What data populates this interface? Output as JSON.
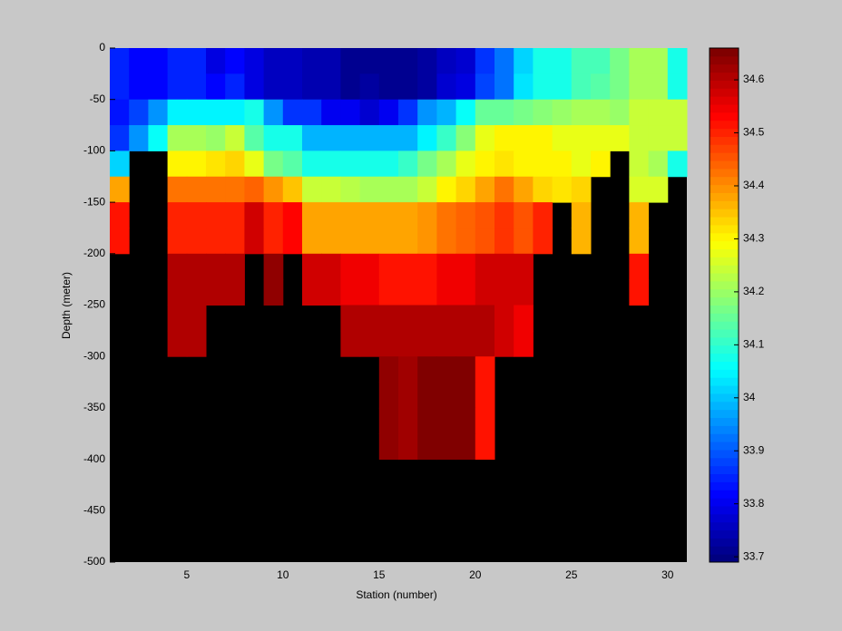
{
  "chart_data": {
    "type": "heatmap",
    "xlabel": "Station (number)",
    "ylabel": "Depth (meter)",
    "xlim": [
      1,
      31
    ],
    "ylim": [
      -500,
      0
    ],
    "xticks": [
      5,
      10,
      15,
      20,
      25,
      30
    ],
    "yticks": [
      0,
      -50,
      -100,
      -150,
      -200,
      -250,
      -300,
      -350,
      -400,
      -450,
      -500
    ],
    "colormap": "jet",
    "nan_color": "#000000",
    "clim": [
      33.69,
      34.66
    ],
    "colorbar_ticks": [
      33.7,
      33.8,
      33.9,
      34,
      34.1,
      34.2,
      34.3,
      34.4,
      34.5,
      34.6
    ],
    "x": [
      1,
      2,
      3,
      4,
      5,
      6,
      7,
      8,
      9,
      10,
      11,
      12,
      13,
      14,
      15,
      16,
      17,
      18,
      19,
      20,
      21,
      22,
      23,
      24,
      25,
      26,
      27,
      28,
      29,
      30
    ],
    "y": [
      0,
      -25,
      -50,
      -75,
      -100,
      -125,
      -150,
      -175,
      -200,
      -225,
      -250,
      -275,
      -300,
      -325,
      -350,
      -375,
      -400,
      -425,
      -450,
      -475
    ],
    "z": [
      [
        33.85,
        33.82,
        33.82,
        33.85,
        33.85,
        33.79,
        33.82,
        33.79,
        33.76,
        33.76,
        33.74,
        33.74,
        33.71,
        33.72,
        33.71,
        33.71,
        33.73,
        33.76,
        33.78,
        33.86,
        33.93,
        34.02,
        34.08,
        34.08,
        34.12,
        34.12,
        34.16,
        34.22,
        34.22,
        34.08
      ],
      [
        33.85,
        33.82,
        33.82,
        33.85,
        33.85,
        33.82,
        33.85,
        33.79,
        33.76,
        33.76,
        33.74,
        33.74,
        33.72,
        33.73,
        33.72,
        33.72,
        33.73,
        33.77,
        33.79,
        33.88,
        33.93,
        34.03,
        34.08,
        34.08,
        34.12,
        34.13,
        34.16,
        34.22,
        34.22,
        34.08
      ],
      [
        33.84,
        33.88,
        33.95,
        34.04,
        34.04,
        34.04,
        34.04,
        34.08,
        33.95,
        33.86,
        33.86,
        33.8,
        33.8,
        33.78,
        33.8,
        33.86,
        33.95,
        33.98,
        34.06,
        34.15,
        34.15,
        34.17,
        34.19,
        34.2,
        34.22,
        34.22,
        34.2,
        34.24,
        34.24,
        34.24
      ],
      [
        33.86,
        33.95,
        34.06,
        34.22,
        34.22,
        34.2,
        34.25,
        34.14,
        34.07,
        34.07,
        33.98,
        33.98,
        33.98,
        33.98,
        33.98,
        33.98,
        34.05,
        34.1,
        34.18,
        34.28,
        34.3,
        34.3,
        34.3,
        34.28,
        34.28,
        34.27,
        34.27,
        34.25,
        34.24,
        34.24
      ],
      [
        34.02,
        null,
        null,
        34.3,
        34.3,
        34.32,
        34.34,
        34.27,
        34.17,
        34.14,
        34.08,
        34.08,
        34.08,
        34.08,
        34.08,
        34.1,
        34.17,
        34.22,
        34.27,
        34.3,
        34.32,
        34.3,
        34.3,
        34.3,
        34.28,
        34.3,
        null,
        34.24,
        34.22,
        34.08
      ],
      [
        34.38,
        null,
        null,
        34.42,
        34.42,
        34.42,
        34.42,
        34.44,
        34.4,
        34.35,
        34.25,
        34.24,
        34.23,
        34.22,
        34.22,
        34.21,
        34.24,
        34.3,
        34.34,
        34.38,
        34.42,
        34.38,
        34.34,
        34.32,
        34.33,
        null,
        null,
        34.26,
        34.26,
        null
      ],
      [
        34.52,
        null,
        null,
        34.5,
        34.5,
        34.5,
        34.5,
        34.58,
        34.5,
        34.53,
        34.38,
        34.38,
        34.38,
        34.38,
        34.38,
        34.38,
        34.4,
        34.42,
        34.44,
        34.46,
        34.48,
        34.46,
        34.5,
        null,
        34.36,
        null,
        null,
        34.36,
        null,
        null
      ],
      [
        34.52,
        null,
        null,
        34.5,
        34.5,
        34.5,
        34.5,
        34.58,
        34.5,
        34.53,
        34.38,
        34.38,
        34.38,
        34.38,
        34.38,
        34.38,
        34.4,
        34.42,
        34.44,
        34.46,
        34.48,
        34.46,
        34.5,
        null,
        34.36,
        null,
        null,
        34.36,
        null,
        null
      ],
      [
        null,
        null,
        null,
        34.61,
        34.61,
        34.61,
        34.61,
        null,
        34.64,
        null,
        34.58,
        34.58,
        34.54,
        34.54,
        34.52,
        34.52,
        34.52,
        34.54,
        34.54,
        34.57,
        34.58,
        34.58,
        null,
        null,
        null,
        null,
        null,
        34.52,
        null,
        null
      ],
      [
        null,
        null,
        null,
        34.61,
        34.61,
        34.61,
        34.61,
        null,
        34.64,
        null,
        34.58,
        34.58,
        34.54,
        34.54,
        34.52,
        34.52,
        34.52,
        34.54,
        34.54,
        34.57,
        34.58,
        34.58,
        null,
        null,
        null,
        null,
        null,
        34.52,
        null,
        null
      ],
      [
        null,
        null,
        null,
        34.61,
        34.61,
        null,
        null,
        null,
        null,
        null,
        null,
        null,
        34.6,
        34.6,
        34.6,
        34.6,
        34.6,
        34.61,
        34.61,
        34.61,
        34.58,
        34.55,
        null,
        null,
        null,
        null,
        null,
        null,
        null,
        null
      ],
      [
        null,
        null,
        null,
        34.61,
        34.61,
        null,
        null,
        null,
        null,
        null,
        null,
        null,
        34.6,
        34.6,
        34.6,
        34.6,
        34.6,
        34.61,
        34.61,
        34.61,
        34.58,
        34.55,
        null,
        null,
        null,
        null,
        null,
        null,
        null,
        null
      ],
      [
        null,
        null,
        null,
        null,
        null,
        null,
        null,
        null,
        null,
        null,
        null,
        null,
        null,
        null,
        34.64,
        34.62,
        34.65,
        34.65,
        34.65,
        34.52,
        null,
        null,
        null,
        null,
        null,
        null,
        null,
        null,
        null,
        null
      ],
      [
        null,
        null,
        null,
        null,
        null,
        null,
        null,
        null,
        null,
        null,
        null,
        null,
        null,
        null,
        34.64,
        34.62,
        34.65,
        34.65,
        34.65,
        34.52,
        null,
        null,
        null,
        null,
        null,
        null,
        null,
        null,
        null,
        null
      ],
      [
        null,
        null,
        null,
        null,
        null,
        null,
        null,
        null,
        null,
        null,
        null,
        null,
        null,
        null,
        34.64,
        34.62,
        34.65,
        34.65,
        34.65,
        34.52,
        null,
        null,
        null,
        null,
        null,
        null,
        null,
        null,
        null,
        null
      ],
      [
        null,
        null,
        null,
        null,
        null,
        null,
        null,
        null,
        null,
        null,
        null,
        null,
        null,
        null,
        34.64,
        34.62,
        34.65,
        34.65,
        34.65,
        34.52,
        null,
        null,
        null,
        null,
        null,
        null,
        null,
        null,
        null,
        null
      ],
      [
        null,
        null,
        null,
        null,
        null,
        null,
        null,
        null,
        null,
        null,
        null,
        null,
        null,
        null,
        null,
        null,
        null,
        null,
        null,
        null,
        null,
        null,
        null,
        null,
        null,
        null,
        null,
        null,
        null,
        null
      ],
      [
        null,
        null,
        null,
        null,
        null,
        null,
        null,
        null,
        null,
        null,
        null,
        null,
        null,
        null,
        null,
        null,
        null,
        null,
        null,
        null,
        null,
        null,
        null,
        null,
        null,
        null,
        null,
        null,
        null,
        null
      ],
      [
        null,
        null,
        null,
        null,
        null,
        null,
        null,
        null,
        null,
        null,
        null,
        null,
        null,
        null,
        null,
        null,
        null,
        null,
        null,
        null,
        null,
        null,
        null,
        null,
        null,
        null,
        null,
        null,
        null,
        null
      ],
      [
        null,
        null,
        null,
        null,
        null,
        null,
        null,
        null,
        null,
        null,
        null,
        null,
        null,
        null,
        null,
        null,
        null,
        null,
        null,
        null,
        null,
        null,
        null,
        null,
        null,
        null,
        null,
        null,
        null,
        null
      ]
    ]
  }
}
